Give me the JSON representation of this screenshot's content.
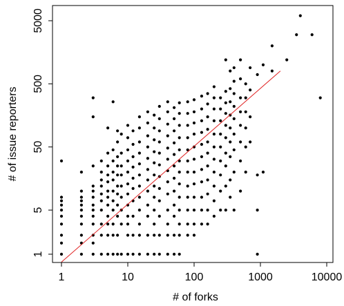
{
  "chart_data": {
    "type": "scatter",
    "xlabel": "# of forks",
    "ylabel": "# of issue reporters",
    "xscale": "log",
    "yscale": "log",
    "xlim": [
      0.85,
      10000
    ],
    "ylim": [
      0.85,
      7000
    ],
    "xticks": [
      1,
      10,
      100,
      1000,
      10000
    ],
    "xtick_labels": [
      "1",
      "10",
      "100",
      "1000",
      "10000"
    ],
    "yticks": [
      1,
      5,
      50,
      500,
      5000
    ],
    "ytick_labels": [
      "1",
      "5",
      "50",
      "500",
      "5000"
    ],
    "grid": false,
    "legend": "none",
    "colors": {
      "points": "#000000",
      "fit_line": "#e02020"
    },
    "fit_line": {
      "points": [
        {
          "x": 1,
          "y": 0.75
        },
        {
          "x": 2000,
          "y": 800
        }
      ]
    },
    "points": [
      {
        "x": 1,
        "y": 1
      },
      {
        "x": 1,
        "y": 1.5
      },
      {
        "x": 1,
        "y": 2
      },
      {
        "x": 1,
        "y": 3
      },
      {
        "x": 1,
        "y": 4
      },
      {
        "x": 1,
        "y": 5
      },
      {
        "x": 1,
        "y": 6
      },
      {
        "x": 1,
        "y": 7
      },
      {
        "x": 1,
        "y": 8
      },
      {
        "x": 1,
        "y": 30
      },
      {
        "x": 2,
        "y": 1
      },
      {
        "x": 2,
        "y": 1.5
      },
      {
        "x": 2,
        "y": 2
      },
      {
        "x": 2,
        "y": 3
      },
      {
        "x": 2,
        "y": 4
      },
      {
        "x": 2,
        "y": 5
      },
      {
        "x": 2,
        "y": 6
      },
      {
        "x": 2,
        "y": 7
      },
      {
        "x": 2,
        "y": 8
      },
      {
        "x": 2,
        "y": 10
      },
      {
        "x": 2,
        "y": 20
      },
      {
        "x": 3,
        "y": 1
      },
      {
        "x": 3,
        "y": 1.5
      },
      {
        "x": 3,
        "y": 2
      },
      {
        "x": 3,
        "y": 3
      },
      {
        "x": 3,
        "y": 4
      },
      {
        "x": 3,
        "y": 5
      },
      {
        "x": 3,
        "y": 6
      },
      {
        "x": 3,
        "y": 8
      },
      {
        "x": 3,
        "y": 10
      },
      {
        "x": 3,
        "y": 12
      },
      {
        "x": 3,
        "y": 25
      },
      {
        "x": 3,
        "y": 150
      },
      {
        "x": 3,
        "y": 300
      },
      {
        "x": 4,
        "y": 1
      },
      {
        "x": 4,
        "y": 2
      },
      {
        "x": 4,
        "y": 3
      },
      {
        "x": 4,
        "y": 5
      },
      {
        "x": 4,
        "y": 7
      },
      {
        "x": 4,
        "y": 9
      },
      {
        "x": 4,
        "y": 12
      },
      {
        "x": 4,
        "y": 15
      },
      {
        "x": 4,
        "y": 20
      },
      {
        "x": 4,
        "y": 30
      },
      {
        "x": 5,
        "y": 1
      },
      {
        "x": 5,
        "y": 2
      },
      {
        "x": 5,
        "y": 3
      },
      {
        "x": 5,
        "y": 4
      },
      {
        "x": 5,
        "y": 6
      },
      {
        "x": 5,
        "y": 8
      },
      {
        "x": 5,
        "y": 10
      },
      {
        "x": 5,
        "y": 14
      },
      {
        "x": 5,
        "y": 18
      },
      {
        "x": 5,
        "y": 25
      },
      {
        "x": 5,
        "y": 40
      },
      {
        "x": 5,
        "y": 100
      },
      {
        "x": 6,
        "y": 1
      },
      {
        "x": 6,
        "y": 2
      },
      {
        "x": 6,
        "y": 3
      },
      {
        "x": 6,
        "y": 5
      },
      {
        "x": 6,
        "y": 7
      },
      {
        "x": 6,
        "y": 10
      },
      {
        "x": 6,
        "y": 15
      },
      {
        "x": 6,
        "y": 20
      },
      {
        "x": 6,
        "y": 30
      },
      {
        "x": 6,
        "y": 45
      },
      {
        "x": 6,
        "y": 260
      },
      {
        "x": 7,
        "y": 1
      },
      {
        "x": 7,
        "y": 2
      },
      {
        "x": 7,
        "y": 4
      },
      {
        "x": 7,
        "y": 6
      },
      {
        "x": 7,
        "y": 9
      },
      {
        "x": 7,
        "y": 12
      },
      {
        "x": 7,
        "y": 18
      },
      {
        "x": 7,
        "y": 25
      },
      {
        "x": 7,
        "y": 35
      },
      {
        "x": 7,
        "y": 60
      },
      {
        "x": 7,
        "y": 90
      },
      {
        "x": 8,
        "y": 1
      },
      {
        "x": 8,
        "y": 3
      },
      {
        "x": 8,
        "y": 5
      },
      {
        "x": 8,
        "y": 8
      },
      {
        "x": 8,
        "y": 12
      },
      {
        "x": 8,
        "y": 18
      },
      {
        "x": 8,
        "y": 25
      },
      {
        "x": 8,
        "y": 40
      },
      {
        "x": 8,
        "y": 80
      },
      {
        "x": 10,
        "y": 1
      },
      {
        "x": 10,
        "y": 2
      },
      {
        "x": 10,
        "y": 3
      },
      {
        "x": 10,
        "y": 4
      },
      {
        "x": 10,
        "y": 6
      },
      {
        "x": 10,
        "y": 9
      },
      {
        "x": 10,
        "y": 13
      },
      {
        "x": 10,
        "y": 20
      },
      {
        "x": 10,
        "y": 30
      },
      {
        "x": 10,
        "y": 45
      },
      {
        "x": 10,
        "y": 70
      },
      {
        "x": 10,
        "y": 110
      },
      {
        "x": 12,
        "y": 1
      },
      {
        "x": 12,
        "y": 2
      },
      {
        "x": 12,
        "y": 4
      },
      {
        "x": 12,
        "y": 7
      },
      {
        "x": 12,
        "y": 11
      },
      {
        "x": 12,
        "y": 16
      },
      {
        "x": 12,
        "y": 24
      },
      {
        "x": 12,
        "y": 35
      },
      {
        "x": 12,
        "y": 55
      },
      {
        "x": 12,
        "y": 90
      },
      {
        "x": 15,
        "y": 1
      },
      {
        "x": 15,
        "y": 2
      },
      {
        "x": 15,
        "y": 3
      },
      {
        "x": 15,
        "y": 5
      },
      {
        "x": 15,
        "y": 8
      },
      {
        "x": 15,
        "y": 12
      },
      {
        "x": 15,
        "y": 18
      },
      {
        "x": 15,
        "y": 27
      },
      {
        "x": 15,
        "y": 40
      },
      {
        "x": 15,
        "y": 60
      },
      {
        "x": 15,
        "y": 100
      },
      {
        "x": 15,
        "y": 150
      },
      {
        "x": 20,
        "y": 1
      },
      {
        "x": 20,
        "y": 2
      },
      {
        "x": 20,
        "y": 4
      },
      {
        "x": 20,
        "y": 6
      },
      {
        "x": 20,
        "y": 10
      },
      {
        "x": 20,
        "y": 15
      },
      {
        "x": 20,
        "y": 22
      },
      {
        "x": 20,
        "y": 33
      },
      {
        "x": 20,
        "y": 50
      },
      {
        "x": 20,
        "y": 75
      },
      {
        "x": 20,
        "y": 120
      },
      {
        "x": 20,
        "y": 180
      },
      {
        "x": 25,
        "y": 1
      },
      {
        "x": 25,
        "y": 2
      },
      {
        "x": 25,
        "y": 3
      },
      {
        "x": 25,
        "y": 5
      },
      {
        "x": 25,
        "y": 8
      },
      {
        "x": 25,
        "y": 12
      },
      {
        "x": 25,
        "y": 18
      },
      {
        "x": 25,
        "y": 28
      },
      {
        "x": 25,
        "y": 42
      },
      {
        "x": 25,
        "y": 65
      },
      {
        "x": 25,
        "y": 100
      },
      {
        "x": 25,
        "y": 160
      },
      {
        "x": 30,
        "y": 1
      },
      {
        "x": 30,
        "y": 2
      },
      {
        "x": 30,
        "y": 4
      },
      {
        "x": 30,
        "y": 7
      },
      {
        "x": 30,
        "y": 11
      },
      {
        "x": 30,
        "y": 17
      },
      {
        "x": 30,
        "y": 26
      },
      {
        "x": 30,
        "y": 40
      },
      {
        "x": 30,
        "y": 60
      },
      {
        "x": 30,
        "y": 90
      },
      {
        "x": 30,
        "y": 140
      },
      {
        "x": 30,
        "y": 220
      },
      {
        "x": 40,
        "y": 1
      },
      {
        "x": 40,
        "y": 2
      },
      {
        "x": 40,
        "y": 3
      },
      {
        "x": 40,
        "y": 5
      },
      {
        "x": 40,
        "y": 9
      },
      {
        "x": 40,
        "y": 14
      },
      {
        "x": 40,
        "y": 21
      },
      {
        "x": 40,
        "y": 32
      },
      {
        "x": 40,
        "y": 48
      },
      {
        "x": 40,
        "y": 75
      },
      {
        "x": 40,
        "y": 115
      },
      {
        "x": 40,
        "y": 180
      },
      {
        "x": 40,
        "y": 260
      },
      {
        "x": 50,
        "y": 1
      },
      {
        "x": 50,
        "y": 2
      },
      {
        "x": 50,
        "y": 4
      },
      {
        "x": 50,
        "y": 6
      },
      {
        "x": 50,
        "y": 10
      },
      {
        "x": 50,
        "y": 16
      },
      {
        "x": 50,
        "y": 25
      },
      {
        "x": 50,
        "y": 38
      },
      {
        "x": 50,
        "y": 58
      },
      {
        "x": 50,
        "y": 90
      },
      {
        "x": 50,
        "y": 140
      },
      {
        "x": 50,
        "y": 210
      },
      {
        "x": 60,
        "y": 1
      },
      {
        "x": 60,
        "y": 2
      },
      {
        "x": 60,
        "y": 3
      },
      {
        "x": 60,
        "y": 5
      },
      {
        "x": 60,
        "y": 8
      },
      {
        "x": 60,
        "y": 13
      },
      {
        "x": 60,
        "y": 20
      },
      {
        "x": 60,
        "y": 30
      },
      {
        "x": 60,
        "y": 45
      },
      {
        "x": 60,
        "y": 70
      },
      {
        "x": 60,
        "y": 110
      },
      {
        "x": 60,
        "y": 170
      },
      {
        "x": 60,
        "y": 250
      },
      {
        "x": 80,
        "y": 2
      },
      {
        "x": 80,
        "y": 3
      },
      {
        "x": 80,
        "y": 5
      },
      {
        "x": 80,
        "y": 8
      },
      {
        "x": 80,
        "y": 12
      },
      {
        "x": 80,
        "y": 20
      },
      {
        "x": 80,
        "y": 30
      },
      {
        "x": 80,
        "y": 45
      },
      {
        "x": 80,
        "y": 70
      },
      {
        "x": 80,
        "y": 110
      },
      {
        "x": 80,
        "y": 170
      },
      {
        "x": 80,
        "y": 260
      },
      {
        "x": 100,
        "y": 2
      },
      {
        "x": 100,
        "y": 3
      },
      {
        "x": 100,
        "y": 5
      },
      {
        "x": 100,
        "y": 8
      },
      {
        "x": 100,
        "y": 13
      },
      {
        "x": 100,
        "y": 20
      },
      {
        "x": 100,
        "y": 32
      },
      {
        "x": 100,
        "y": 50
      },
      {
        "x": 100,
        "y": 80
      },
      {
        "x": 100,
        "y": 120
      },
      {
        "x": 100,
        "y": 180
      },
      {
        "x": 100,
        "y": 280
      },
      {
        "x": 130,
        "y": 3
      },
      {
        "x": 130,
        "y": 5
      },
      {
        "x": 130,
        "y": 8
      },
      {
        "x": 130,
        "y": 14
      },
      {
        "x": 130,
        "y": 22
      },
      {
        "x": 130,
        "y": 35
      },
      {
        "x": 130,
        "y": 55
      },
      {
        "x": 130,
        "y": 85
      },
      {
        "x": 130,
        "y": 130
      },
      {
        "x": 130,
        "y": 200
      },
      {
        "x": 130,
        "y": 320
      },
      {
        "x": 160,
        "y": 3
      },
      {
        "x": 160,
        "y": 5
      },
      {
        "x": 160,
        "y": 9
      },
      {
        "x": 160,
        "y": 15
      },
      {
        "x": 160,
        "y": 25
      },
      {
        "x": 160,
        "y": 40
      },
      {
        "x": 160,
        "y": 60
      },
      {
        "x": 160,
        "y": 95
      },
      {
        "x": 160,
        "y": 150
      },
      {
        "x": 160,
        "y": 240
      },
      {
        "x": 160,
        "y": 350
      },
      {
        "x": 200,
        "y": 4
      },
      {
        "x": 200,
        "y": 7
      },
      {
        "x": 200,
        "y": 12
      },
      {
        "x": 200,
        "y": 20
      },
      {
        "x": 200,
        "y": 32
      },
      {
        "x": 200,
        "y": 50
      },
      {
        "x": 200,
        "y": 80
      },
      {
        "x": 200,
        "y": 130
      },
      {
        "x": 200,
        "y": 200
      },
      {
        "x": 200,
        "y": 300
      },
      {
        "x": 200,
        "y": 450
      },
      {
        "x": 250,
        "y": 5
      },
      {
        "x": 250,
        "y": 10
      },
      {
        "x": 250,
        "y": 18
      },
      {
        "x": 250,
        "y": 30
      },
      {
        "x": 250,
        "y": 50
      },
      {
        "x": 250,
        "y": 80
      },
      {
        "x": 250,
        "y": 130
      },
      {
        "x": 250,
        "y": 200
      },
      {
        "x": 250,
        "y": 300
      },
      {
        "x": 300,
        "y": 5
      },
      {
        "x": 300,
        "y": 12
      },
      {
        "x": 300,
        "y": 25
      },
      {
        "x": 300,
        "y": 40
      },
      {
        "x": 300,
        "y": 70
      },
      {
        "x": 300,
        "y": 110
      },
      {
        "x": 300,
        "y": 170
      },
      {
        "x": 300,
        "y": 250
      },
      {
        "x": 300,
        "y": 380
      },
      {
        "x": 300,
        "y": 1200
      },
      {
        "x": 350,
        "y": 8
      },
      {
        "x": 350,
        "y": 15
      },
      {
        "x": 350,
        "y": 35
      },
      {
        "x": 350,
        "y": 60
      },
      {
        "x": 350,
        "y": 100
      },
      {
        "x": 350,
        "y": 160
      },
      {
        "x": 350,
        "y": 260
      },
      {
        "x": 350,
        "y": 420
      },
      {
        "x": 350,
        "y": 800
      },
      {
        "x": 400,
        "y": 5
      },
      {
        "x": 400,
        "y": 20
      },
      {
        "x": 400,
        "y": 45
      },
      {
        "x": 400,
        "y": 80
      },
      {
        "x": 400,
        "y": 140
      },
      {
        "x": 400,
        "y": 220
      },
      {
        "x": 400,
        "y": 350
      },
      {
        "x": 400,
        "y": 550
      },
      {
        "x": 400,
        "y": 900
      },
      {
        "x": 500,
        "y": 10
      },
      {
        "x": 500,
        "y": 30
      },
      {
        "x": 500,
        "y": 60
      },
      {
        "x": 500,
        "y": 110
      },
      {
        "x": 500,
        "y": 180
      },
      {
        "x": 500,
        "y": 300
      },
      {
        "x": 500,
        "y": 600
      },
      {
        "x": 500,
        "y": 1200
      },
      {
        "x": 600,
        "y": 20
      },
      {
        "x": 600,
        "y": 50
      },
      {
        "x": 600,
        "y": 100
      },
      {
        "x": 600,
        "y": 180
      },
      {
        "x": 600,
        "y": 300
      },
      {
        "x": 600,
        "y": 500
      },
      {
        "x": 700,
        "y": 60
      },
      {
        "x": 700,
        "y": 150
      },
      {
        "x": 700,
        "y": 400
      },
      {
        "x": 700,
        "y": 900
      },
      {
        "x": 900,
        "y": 1
      },
      {
        "x": 900,
        "y": 5
      },
      {
        "x": 900,
        "y": 18
      },
      {
        "x": 900,
        "y": 700
      },
      {
        "x": 1100,
        "y": 20
      },
      {
        "x": 1100,
        "y": 1000
      },
      {
        "x": 1500,
        "y": 800
      },
      {
        "x": 1500,
        "y": 2000
      },
      {
        "x": 2500,
        "y": 1200
      },
      {
        "x": 3500,
        "y": 3000
      },
      {
        "x": 4000,
        "y": 6000
      },
      {
        "x": 6000,
        "y": 3000
      },
      {
        "x": 8000,
        "y": 300
      }
    ]
  }
}
